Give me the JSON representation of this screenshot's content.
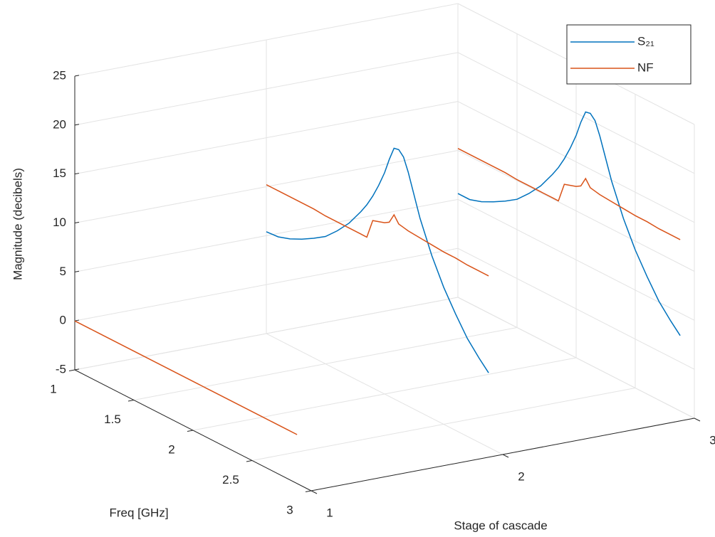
{
  "chart_data": {
    "type": "line3d",
    "xlabel": "Freq [GHz]",
    "ylabel": "Stage of cascade",
    "zlabel": "Magnitude (decibels)",
    "x": [
      1.0,
      1.1,
      1.2,
      1.3,
      1.4,
      1.5,
      1.6,
      1.7,
      1.8,
      1.85,
      1.9,
      1.95,
      2.0,
      2.04,
      2.08,
      2.12,
      2.16,
      2.2,
      2.3,
      2.4,
      2.5,
      2.6,
      2.7,
      2.8,
      2.88
    ],
    "stages": [
      1,
      2,
      3
    ],
    "series": [
      {
        "name": "S₂₁",
        "color": "#0072BD",
        "values": [
          [
            null,
            null,
            null,
            null,
            null,
            null,
            null,
            null,
            null,
            null,
            null,
            null,
            null,
            null,
            null,
            null,
            null,
            null,
            null,
            null,
            null,
            null,
            null,
            null,
            null
          ],
          [
            5.4,
            5.5,
            5.9,
            6.5,
            7.2,
            8.0,
            9.2,
            10.6,
            12.4,
            13.4,
            14.6,
            16.0,
            17.6,
            19.2,
            20.6,
            20.7,
            20.2,
            18.9,
            14.8,
            11.6,
            9.0,
            6.9,
            5.0,
            3.6,
            2.6
          ],
          [
            5.6,
            5.6,
            6.0,
            6.6,
            7.3,
            8.1,
            9.3,
            10.7,
            12.5,
            13.5,
            14.7,
            16.1,
            17.7,
            19.3,
            20.6,
            20.7,
            20.2,
            18.9,
            14.9,
            11.7,
            9.1,
            7.0,
            5.1,
            3.7,
            2.7
          ]
        ]
      },
      {
        "name": "NF",
        "color": "#D95319",
        "values": [
          [
            0,
            0,
            0,
            0,
            0,
            0,
            0,
            0,
            0,
            0,
            0,
            0,
            0,
            0,
            0,
            0,
            0,
            0,
            0,
            0,
            0,
            0,
            0,
            0,
            0
          ],
          [
            10.2,
            10.2,
            10.2,
            10.2,
            10.2,
            10.1,
            10.1,
            10.1,
            10.1,
            10.1,
            12.1,
            12.3,
            12.5,
            12.8,
            13.8,
            13.1,
            13.0,
            12.9,
            12.8,
            12.7,
            12.6,
            12.6,
            12.5,
            12.5,
            12.5
          ],
          [
            10.2,
            10.2,
            10.2,
            10.2,
            10.2,
            10.1,
            10.1,
            10.1,
            10.1,
            10.1,
            12.1,
            12.3,
            12.5,
            12.8,
            13.8,
            13.1,
            13.0,
            12.9,
            12.8,
            12.7,
            12.6,
            12.6,
            12.5,
            12.5,
            12.5
          ]
        ]
      }
    ],
    "xlim": [
      1,
      3
    ],
    "xticks": [
      1,
      1.5,
      2,
      2.5,
      3
    ],
    "ylim": [
      1,
      3
    ],
    "yticks": [
      1,
      2,
      3
    ],
    "zlim": [
      -5,
      25
    ],
    "zticks": [
      -5,
      0,
      5,
      10,
      15,
      20,
      25
    ],
    "grid": true,
    "legend": "northeast"
  }
}
